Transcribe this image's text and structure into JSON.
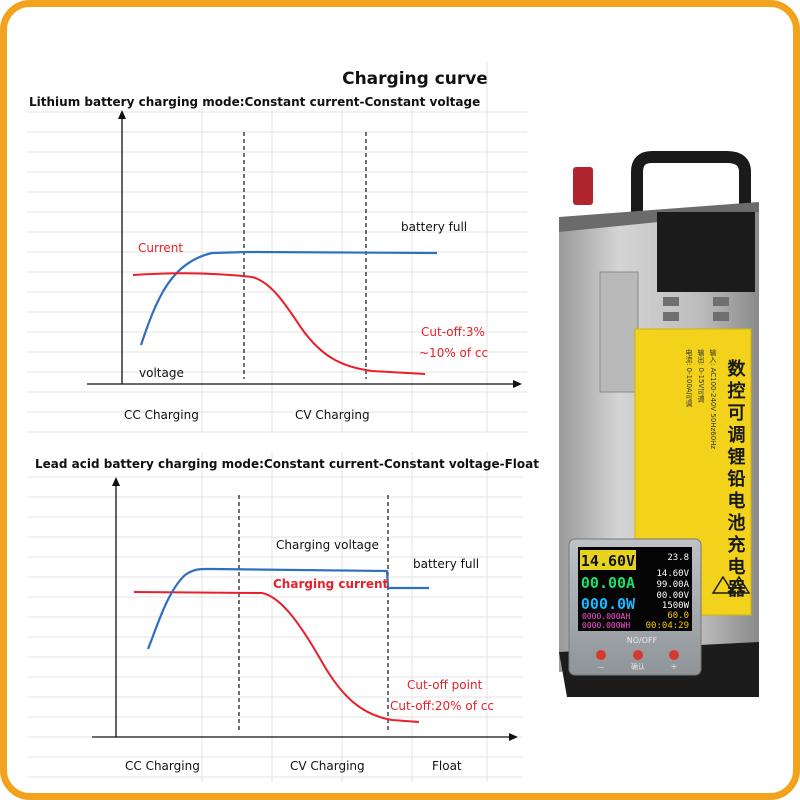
{
  "title": "Charging curve",
  "lithium": {
    "heading": "Lithium battery charging mode:Constant current-Constant voltage",
    "current_label": "Current",
    "voltage_label": "voltage",
    "full_label": "battery full",
    "cutoff_line1": "Cut-off:3%",
    "cutoff_line2": "~10% of cc",
    "phase_cc": "CC Charging",
    "phase_cv": "CV Charging"
  },
  "lead_acid": {
    "heading": "Lead acid battery charging mode:Constant current-Constant voltage-Float",
    "voltage_label": "Charging voltage",
    "current_label": "Charging current",
    "full_label": "battery full",
    "cutoff_line1": "Cut-off point",
    "cutoff_line2": "Cut-off:20% of cc",
    "phase_cc": "CC Charging",
    "phase_cv": "CV Charging",
    "phase_float": "Float"
  },
  "device": {
    "label_chars": "数控可调锂铅电池充电器",
    "spec_line1": "输入: AC100-240V 50Hz60Hz",
    "spec_line2": "输出: 0-15V可调",
    "spec_line3": "电流: 0-100A可调",
    "display": {
      "voltage": "14.60V",
      "current": "00.00A",
      "power": "000.0W",
      "capacity": "0000.000AH",
      "energy": "0000.000WH",
      "temp": "23.8",
      "set_voltage": "14.60V",
      "set_current": "99.00A",
      "ovp": "00.00V",
      "opp": "1500W",
      "uvp": "60.0",
      "time": "00:04:29"
    },
    "button_caption": "NO/OFF",
    "button_left": "—",
    "button_mid": "确认",
    "button_right": "+"
  },
  "colors": {
    "current": "#e8202a",
    "voltage": "#2f6fc0",
    "border": "#f4a21e",
    "label": "#f2d21a"
  }
}
